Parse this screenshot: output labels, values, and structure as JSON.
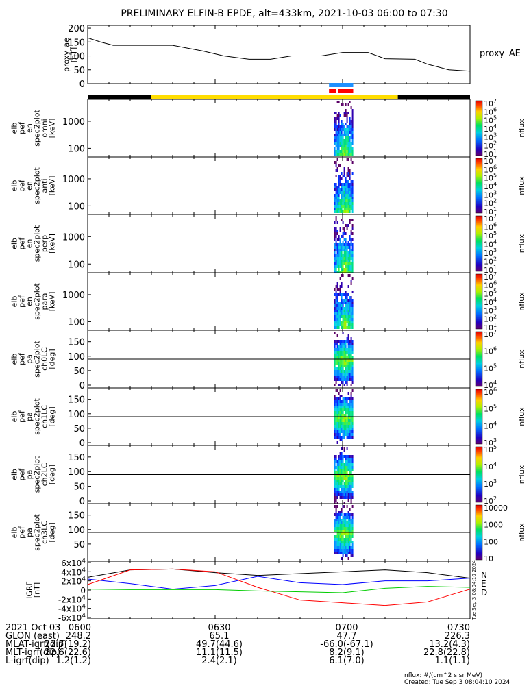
{
  "title": "PRELIMINARY ELFIN-B EPDE, alt=433km, 2021-10-03 06:00 to 07:30",
  "chart_data": [
    {
      "type": "line",
      "panel": "proxy_ae",
      "ylabel_lines": [
        "proxy_ae",
        "[nT]"
      ],
      "legend": "proxy_AE",
      "yticks": [
        "0",
        "50",
        "100",
        "150",
        "200"
      ],
      "ylim": [
        0,
        210
      ],
      "x_minutes": [
        0,
        3,
        6,
        12,
        20,
        27,
        32,
        38,
        43,
        48,
        55,
        60,
        66,
        70,
        77,
        80,
        85,
        90
      ],
      "y": [
        165,
        150,
        138,
        138,
        138,
        118,
        100,
        88,
        88,
        100,
        100,
        112,
        112,
        90,
        88,
        70,
        50,
        45
      ]
    },
    {
      "type": "heatmap",
      "panel": "omni",
      "ylabel_lines": [
        "elb",
        "pef",
        "en",
        "spec2plot",
        "omni",
        "[keV]"
      ],
      "yticks": [
        "100",
        "1000"
      ],
      "colorbar_ticks": [
        "10^1",
        "10^2",
        "10^3",
        "10^4",
        "10^5",
        "10^6",
        "10^7"
      ],
      "colorbar_label": "nflux"
    },
    {
      "type": "heatmap",
      "panel": "anti",
      "ylabel_lines": [
        "elb",
        "pef",
        "en",
        "spec2plot",
        "anti",
        "[keV]"
      ],
      "yticks": [
        "100",
        "1000"
      ],
      "colorbar_ticks": [
        "10^1",
        "10^2",
        "10^3",
        "10^4",
        "10^5",
        "10^6",
        "10^7"
      ],
      "colorbar_label": "nflux"
    },
    {
      "type": "heatmap",
      "panel": "perp",
      "ylabel_lines": [
        "elb",
        "pef",
        "en",
        "spec2plot",
        "perp",
        "[keV]"
      ],
      "yticks": [
        "100",
        "1000"
      ],
      "colorbar_ticks": [
        "10^1",
        "10^2",
        "10^3",
        "10^4",
        "10^5",
        "10^6",
        "10^7"
      ],
      "colorbar_label": "nflux"
    },
    {
      "type": "heatmap",
      "panel": "para",
      "ylabel_lines": [
        "elb",
        "pef",
        "en",
        "spec2plot",
        "para",
        "[keV]"
      ],
      "yticks": [
        "100",
        "1000"
      ],
      "colorbar_ticks": [
        "10^1",
        "10^2",
        "10^3",
        "10^4",
        "10^5",
        "10^6",
        "10^7"
      ],
      "colorbar_label": "nflux"
    },
    {
      "type": "heatmap",
      "panel": "ch0LC",
      "ylabel_lines": [
        "elb",
        "pef",
        "pa",
        "spec2plot",
        "ch0LC",
        "[deg]"
      ],
      "yticks": [
        "0",
        "50",
        "100",
        "150"
      ],
      "colorbar_ticks": [
        "10^4",
        "10^5",
        "10^6",
        "10^7"
      ],
      "colorbar_label": "nflux"
    },
    {
      "type": "heatmap",
      "panel": "ch1LC",
      "ylabel_lines": [
        "elb",
        "pef",
        "pa",
        "spec2plot",
        "ch1LC",
        "[deg]"
      ],
      "yticks": [
        "0",
        "50",
        "100",
        "150"
      ],
      "colorbar_ticks": [
        "10^3",
        "10^4",
        "10^5",
        "10^6"
      ],
      "colorbar_label": "nflux"
    },
    {
      "type": "heatmap",
      "panel": "ch2LC",
      "ylabel_lines": [
        "elb",
        "pef",
        "pa",
        "spec2plot",
        "ch2LC",
        "[deg]"
      ],
      "yticks": [
        "0",
        "50",
        "100",
        "150"
      ],
      "colorbar_ticks": [
        "10^2",
        "10^3",
        "10^4",
        "10^5"
      ],
      "colorbar_label": "nflux"
    },
    {
      "type": "heatmap",
      "panel": "ch3LC",
      "ylabel_lines": [
        "elb",
        "pef",
        "pa",
        "spec2plot",
        "ch3LC",
        "[deg]"
      ],
      "yticks": [
        "50",
        "100",
        "150"
      ],
      "colorbar_ticks": [
        "10",
        "100",
        "1000",
        "10000"
      ],
      "colorbar_label": "nflux"
    },
    {
      "type": "line",
      "panel": "IGRF",
      "ylabel_lines": [
        "IGRF",
        "[nT]"
      ],
      "yticks": [
        "-6x10^4",
        "-4x10^4",
        "-2x10^4",
        "0",
        "2x10^4",
        "4x10^4",
        "6x10^4"
      ],
      "ylim": [
        -60000,
        60000
      ],
      "legend": [
        "N",
        "E",
        "D"
      ],
      "side_label": "Tue Sep  3 08:04:10 2024",
      "x_minutes": [
        0,
        10,
        20,
        30,
        40,
        50,
        60,
        70,
        80,
        90
      ],
      "series": [
        {
          "color": "#000000",
          "values": [
            28000,
            44000,
            46000,
            38000,
            32000,
            36000,
            40000,
            44000,
            38000,
            26000
          ]
        },
        {
          "color": "#0000ff",
          "values": [
            24000,
            14000,
            2000,
            10000,
            30000,
            16000,
            12000,
            20000,
            20000,
            26000
          ]
        },
        {
          "color": "#ff0000",
          "values": [
            12000,
            44000,
            46000,
            40000,
            6000,
            -22000,
            -28000,
            -34000,
            -26000,
            2000
          ]
        },
        {
          "color": "#00cc00",
          "values": [
            2000,
            1000,
            1000,
            1000,
            -2000,
            -4000,
            -6000,
            4000,
            8000,
            6000
          ]
        }
      ]
    }
  ],
  "x_axis": {
    "tick_labels": [
      "0600",
      "0630",
      "0700",
      "0730"
    ],
    "rows": [
      {
        "label": "2021 Oct 03",
        "values": [
          "0600",
          "0630",
          "0700",
          "0730"
        ]
      },
      {
        "label": "GLON (east)",
        "values": [
          "248.2",
          "65.1",
          "47.7",
          "226.3"
        ]
      },
      {
        "label": "MLAT-igrf(dip)",
        "values": [
          "22.7(19.2)",
          "49.7(44.6)",
          "-66.0(-67.1)",
          "13.2(4.3)"
        ]
      },
      {
        "label": "MLT-igrf(dip)",
        "values": [
          "22.6(22.6)",
          "11.1(11.5)",
          "8.2(9.1)",
          "22.8(22.8)"
        ]
      },
      {
        "label": "L-igrf(dip)",
        "values": [
          "1.2(1.2)",
          "2.4(2.1)",
          "6.1(7.0)",
          "1.1(1.1)"
        ]
      }
    ]
  },
  "footer": {
    "units": "nflux: #/(cm^2 s sr MeV)",
    "created": "Created: Tue Sep  3 08:04:10 2024"
  },
  "colors": {
    "bar_yellow": "#ffdd00",
    "bar_black": "#000000",
    "bar_blue": "#1e90ff",
    "bar_red": "#ff0000"
  }
}
